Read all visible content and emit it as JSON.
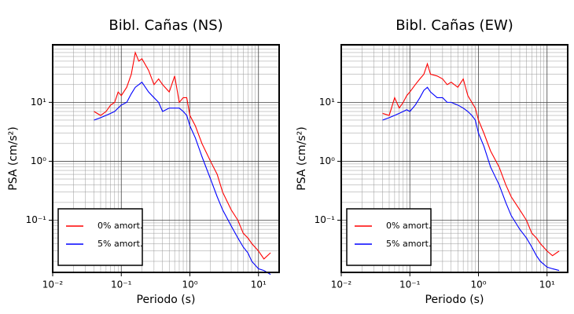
{
  "chart_data": [
    {
      "type": "line",
      "title": "Bibl. Cañas (NS)",
      "x_label": "Periodo (s)",
      "y_label": "PSA (cm/s²)",
      "log_x": true,
      "log_y": true,
      "grid": true,
      "legend": "lower left",
      "xlim": [
        0.01,
        20
      ],
      "ylim": [
        0.013,
        95
      ],
      "xticks": [
        {
          "value": 0.01,
          "label": "10⁻²"
        },
        {
          "value": 0.1,
          "label": "10⁻¹"
        },
        {
          "value": 1,
          "label": "10⁰"
        },
        {
          "value": 10,
          "label": "10¹"
        }
      ],
      "yticks": [
        {
          "value": 0.1,
          "label": "10⁻¹"
        },
        {
          "value": 1,
          "label": "10⁰"
        },
        {
          "value": 10,
          "label": "10¹"
        }
      ],
      "x": [
        0.04,
        0.05,
        0.06,
        0.07,
        0.08,
        0.09,
        0.1,
        0.12,
        0.14,
        0.16,
        0.18,
        0.2,
        0.25,
        0.3,
        0.35,
        0.4,
        0.5,
        0.6,
        0.7,
        0.8,
        0.9,
        1.0,
        1.2,
        1.5,
        2,
        2.5,
        3,
        4,
        5,
        6,
        7,
        8,
        10,
        12,
        15
      ],
      "series": [
        {
          "name": "0% amort.",
          "color": "#ff0000",
          "values": [
            7,
            6,
            7,
            9,
            10,
            15,
            13,
            18,
            30,
            70,
            50,
            55,
            35,
            20,
            25,
            20,
            15,
            28,
            10,
            12,
            12,
            6,
            4,
            2,
            1,
            0.6,
            0.3,
            0.15,
            0.1,
            0.06,
            0.05,
            0.04,
            0.03,
            0.022,
            0.028
          ]
        },
        {
          "name": "5% amort.",
          "color": "#0000ff",
          "values": [
            5,
            5.5,
            6,
            6.5,
            7,
            8,
            9,
            10,
            14,
            18,
            20,
            22,
            15,
            12,
            10,
            7,
            8,
            8,
            8,
            7,
            6,
            4,
            2.5,
            1.2,
            0.5,
            0.25,
            0.15,
            0.08,
            0.05,
            0.035,
            0.028,
            0.02,
            0.015,
            0.014,
            0.012
          ]
        }
      ]
    },
    {
      "type": "line",
      "title": "Bibl. Cañas (EW)",
      "x_label": "Periodo (s)",
      "y_label": "PSA (cm/s²)",
      "log_x": true,
      "log_y": true,
      "grid": true,
      "legend": "lower left",
      "xlim": [
        0.01,
        20
      ],
      "ylim": [
        0.013,
        95
      ],
      "xticks": [
        {
          "value": 0.01,
          "label": "10⁻²"
        },
        {
          "value": 0.1,
          "label": "10⁻¹"
        },
        {
          "value": 1,
          "label": "10⁰"
        },
        {
          "value": 10,
          "label": "10¹"
        }
      ],
      "yticks": [
        {
          "value": 0.1,
          "label": "10⁻¹"
        },
        {
          "value": 1,
          "label": "10⁰"
        },
        {
          "value": 10,
          "label": "10¹"
        }
      ],
      "x": [
        0.04,
        0.05,
        0.06,
        0.07,
        0.08,
        0.09,
        0.1,
        0.12,
        0.14,
        0.16,
        0.18,
        0.2,
        0.25,
        0.3,
        0.35,
        0.4,
        0.5,
        0.6,
        0.7,
        0.8,
        0.9,
        1.0,
        1.2,
        1.5,
        2,
        2.5,
        3,
        4,
        5,
        6,
        7,
        8,
        10,
        12,
        15
      ],
      "series": [
        {
          "name": "0% amort.",
          "color": "#ff0000",
          "values": [
            6.5,
            6,
            12,
            8,
            10,
            13,
            15,
            20,
            25,
            30,
            45,
            30,
            28,
            25,
            20,
            22,
            18,
            25,
            13,
            10,
            8,
            5,
            3,
            1.5,
            0.8,
            0.4,
            0.25,
            0.15,
            0.1,
            0.06,
            0.05,
            0.04,
            0.03,
            0.025,
            0.03
          ]
        },
        {
          "name": "5% amort.",
          "color": "#0000ff",
          "values": [
            5,
            5.5,
            6,
            6.5,
            7,
            7.5,
            7,
            9,
            12,
            16,
            18,
            15,
            12,
            12,
            10,
            10,
            9,
            8,
            7,
            6,
            5,
            3,
            1.8,
            0.8,
            0.4,
            0.2,
            0.12,
            0.07,
            0.05,
            0.035,
            0.025,
            0.02,
            0.016,
            0.015,
            0.014
          ]
        }
      ]
    }
  ]
}
